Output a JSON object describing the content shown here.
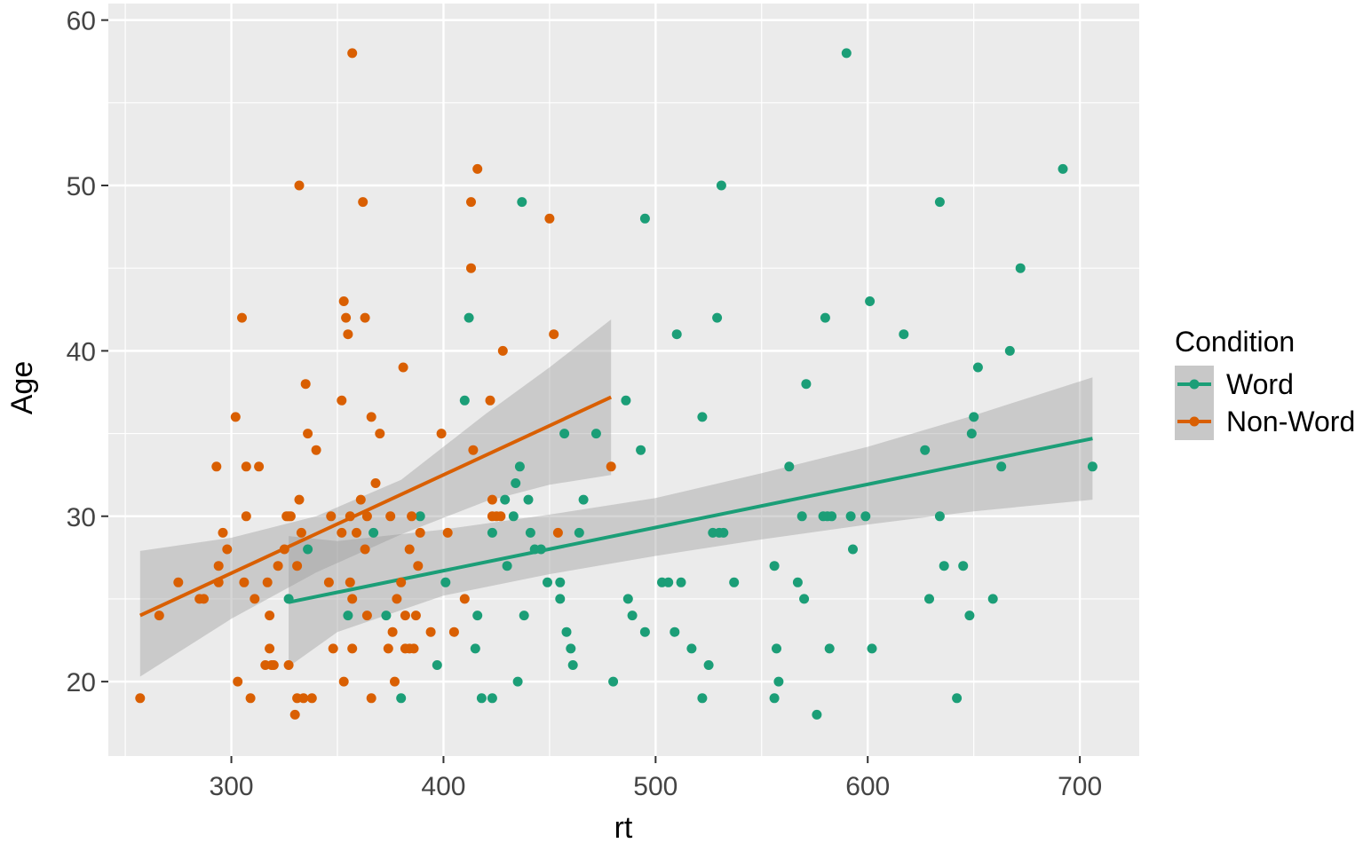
{
  "chart_data": {
    "type": "scatter",
    "title": "",
    "xlabel": "rt",
    "ylabel": "Age",
    "xlim": [
      242,
      728
    ],
    "ylim": [
      15.5,
      61
    ],
    "x_ticks": [
      300,
      400,
      500,
      600,
      700
    ],
    "y_ticks": [
      20,
      30,
      40,
      50,
      60
    ],
    "grid": true,
    "legend": {
      "title": "Condition",
      "position": "right"
    },
    "series": [
      {
        "name": "Word",
        "color": "#1b9e77",
        "points": [
          [
            327,
            25
          ],
          [
            336,
            28
          ],
          [
            355,
            24
          ],
          [
            367,
            29
          ],
          [
            373,
            24
          ],
          [
            380,
            19
          ],
          [
            389,
            30
          ],
          [
            397,
            21
          ],
          [
            401,
            26
          ],
          [
            410,
            37
          ],
          [
            412,
            42
          ],
          [
            415,
            22
          ],
          [
            416,
            24
          ],
          [
            418,
            19
          ],
          [
            423,
            29
          ],
          [
            423,
            19
          ],
          [
            429,
            31
          ],
          [
            430,
            27
          ],
          [
            433,
            30
          ],
          [
            434,
            32
          ],
          [
            435,
            20
          ],
          [
            436,
            33
          ],
          [
            437,
            49
          ],
          [
            438,
            24
          ],
          [
            440,
            31
          ],
          [
            441,
            29
          ],
          [
            443,
            28
          ],
          [
            446,
            28
          ],
          [
            449,
            26
          ],
          [
            455,
            26
          ],
          [
            455,
            25
          ],
          [
            457,
            35
          ],
          [
            458,
            23
          ],
          [
            460,
            22
          ],
          [
            461,
            21
          ],
          [
            464,
            29
          ],
          [
            466,
            31
          ],
          [
            472,
            35
          ],
          [
            480,
            20
          ],
          [
            486,
            37
          ],
          [
            487,
            25
          ],
          [
            489,
            24
          ],
          [
            493,
            34
          ],
          [
            495,
            23
          ],
          [
            495,
            48
          ],
          [
            503,
            26
          ],
          [
            506,
            26
          ],
          [
            509,
            23
          ],
          [
            510,
            41
          ],
          [
            512,
            26
          ],
          [
            517,
            22
          ],
          [
            522,
            36
          ],
          [
            522,
            19
          ],
          [
            525,
            21
          ],
          [
            527,
            29
          ],
          [
            529,
            42
          ],
          [
            530,
            29
          ],
          [
            531,
            50
          ],
          [
            532,
            29
          ],
          [
            537,
            26
          ],
          [
            556,
            27
          ],
          [
            556,
            19
          ],
          [
            557,
            22
          ],
          [
            558,
            20
          ],
          [
            563,
            33
          ],
          [
            567,
            26
          ],
          [
            569,
            30
          ],
          [
            570,
            25
          ],
          [
            571,
            38
          ],
          [
            576,
            18
          ],
          [
            579,
            30
          ],
          [
            580,
            42
          ],
          [
            581,
            30
          ],
          [
            582,
            22
          ],
          [
            583,
            30
          ],
          [
            590,
            58
          ],
          [
            592,
            30
          ],
          [
            593,
            28
          ],
          [
            599,
            30
          ],
          [
            601,
            43
          ],
          [
            602,
            22
          ],
          [
            617,
            41
          ],
          [
            627,
            34
          ],
          [
            629,
            25
          ],
          [
            634,
            30
          ],
          [
            634,
            49
          ],
          [
            636,
            27
          ],
          [
            642,
            19
          ],
          [
            645,
            27
          ],
          [
            648,
            24
          ],
          [
            649,
            35
          ],
          [
            650,
            36
          ],
          [
            652,
            39
          ],
          [
            659,
            25
          ],
          [
            663,
            33
          ],
          [
            667,
            40
          ],
          [
            672,
            45
          ],
          [
            692,
            51
          ],
          [
            706,
            33
          ]
        ],
        "trend": {
          "x": [
            327,
            706
          ],
          "y": [
            24.8,
            34.7
          ]
        },
        "ci_band": {
          "x": [
            327,
            350,
            400,
            450,
            500,
            550,
            600,
            650,
            706
          ],
          "lower": [
            20.9,
            23.0,
            25.2,
            26.5,
            27.6,
            28.6,
            29.5,
            30.3,
            31.0
          ],
          "upper": [
            28.8,
            28.5,
            29.2,
            30.1,
            31.1,
            32.6,
            34.2,
            36.1,
            38.4
          ]
        }
      },
      {
        "name": "Non-Word",
        "color": "#d95f02",
        "points": [
          [
            257,
            19
          ],
          [
            266,
            24
          ],
          [
            275,
            26
          ],
          [
            285,
            25
          ],
          [
            287,
            25
          ],
          [
            293,
            33
          ],
          [
            294,
            27
          ],
          [
            294,
            26
          ],
          [
            296,
            29
          ],
          [
            298,
            28
          ],
          [
            302,
            36
          ],
          [
            303,
            20
          ],
          [
            305,
            42
          ],
          [
            306,
            26
          ],
          [
            307,
            33
          ],
          [
            307,
            30
          ],
          [
            309,
            19
          ],
          [
            311,
            25
          ],
          [
            313,
            33
          ],
          [
            316,
            21
          ],
          [
            317,
            26
          ],
          [
            318,
            22
          ],
          [
            318,
            24
          ],
          [
            319,
            21
          ],
          [
            320,
            21
          ],
          [
            322,
            27
          ],
          [
            325,
            28
          ],
          [
            326,
            30
          ],
          [
            327,
            21
          ],
          [
            327,
            30
          ],
          [
            328,
            30
          ],
          [
            330,
            18
          ],
          [
            331,
            27
          ],
          [
            331,
            19
          ],
          [
            332,
            31
          ],
          [
            332,
            50
          ],
          [
            333,
            29
          ],
          [
            334,
            19
          ],
          [
            335,
            38
          ],
          [
            336,
            35
          ],
          [
            338,
            19
          ],
          [
            340,
            34
          ],
          [
            346,
            26
          ],
          [
            347,
            30
          ],
          [
            348,
            22
          ],
          [
            352,
            29
          ],
          [
            352,
            37
          ],
          [
            353,
            20
          ],
          [
            353,
            43
          ],
          [
            354,
            42
          ],
          [
            355,
            41
          ],
          [
            356,
            30
          ],
          [
            356,
            26
          ],
          [
            357,
            25
          ],
          [
            357,
            22
          ],
          [
            357,
            58
          ],
          [
            359,
            29
          ],
          [
            361,
            31
          ],
          [
            362,
            49
          ],
          [
            363,
            28
          ],
          [
            363,
            42
          ],
          [
            364,
            30
          ],
          [
            364,
            24
          ],
          [
            366,
            36
          ],
          [
            366,
            19
          ],
          [
            368,
            32
          ],
          [
            370,
            35
          ],
          [
            374,
            22
          ],
          [
            375,
            30
          ],
          [
            376,
            23
          ],
          [
            377,
            20
          ],
          [
            378,
            25
          ],
          [
            380,
            26
          ],
          [
            381,
            39
          ],
          [
            382,
            22
          ],
          [
            382,
            24
          ],
          [
            384,
            22
          ],
          [
            384,
            28
          ],
          [
            385,
            30
          ],
          [
            386,
            22
          ],
          [
            387,
            24
          ],
          [
            388,
            27
          ],
          [
            389,
            29
          ],
          [
            394,
            23
          ],
          [
            399,
            35
          ],
          [
            402,
            29
          ],
          [
            405,
            23
          ],
          [
            410,
            25
          ],
          [
            413,
            49
          ],
          [
            413,
            45
          ],
          [
            414,
            34
          ],
          [
            416,
            51
          ],
          [
            422,
            37
          ],
          [
            423,
            31
          ],
          [
            423,
            30
          ],
          [
            425,
            30
          ],
          [
            427,
            30
          ],
          [
            428,
            40
          ],
          [
            450,
            48
          ],
          [
            452,
            41
          ],
          [
            454,
            29
          ],
          [
            479,
            33
          ]
        ],
        "trend": {
          "x": [
            257,
            479
          ],
          "y": [
            24.0,
            37.2
          ]
        },
        "ci_band": {
          "x": [
            257,
            300,
            340,
            380,
            420,
            450,
            479
          ],
          "lower": [
            20.3,
            23.8,
            26.6,
            28.9,
            30.9,
            31.9,
            32.5
          ],
          "upper": [
            27.9,
            28.7,
            30.0,
            32.2,
            36.2,
            39.0,
            41.9
          ]
        }
      }
    ]
  }
}
